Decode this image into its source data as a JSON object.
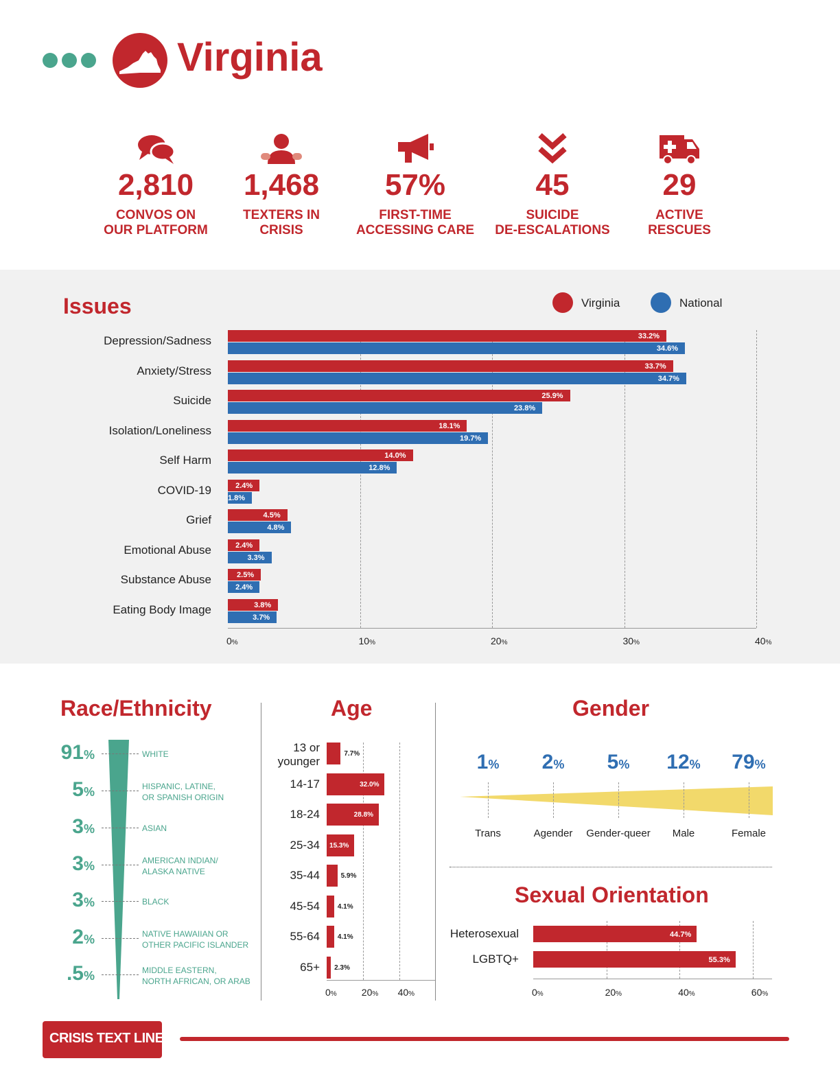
{
  "header": {
    "state": "Virginia"
  },
  "stats": [
    {
      "icon": "chat-bubbles-icon",
      "value": "2,810",
      "label1": "CONVOS ON",
      "label2": "OUR PLATFORM"
    },
    {
      "icon": "person-icon",
      "value": "1,468",
      "label1": "TEXTERS IN",
      "label2": "CRISIS"
    },
    {
      "icon": "megaphone-icon",
      "value": "57%",
      "label1": "FIRST-TIME",
      "label2": "ACCESSING CARE"
    },
    {
      "icon": "chevrons-down-icon",
      "value": "45",
      "label1": "SUICIDE",
      "label2": "DE-ESCALATIONS"
    },
    {
      "icon": "ambulance-icon",
      "value": "29",
      "label1": "ACTIVE",
      "label2": "RESCUES"
    }
  ],
  "colors": {
    "red": "#c1272d",
    "blue": "#2f6eb2",
    "green": "#4aa58d",
    "yellow": "#f2d96b"
  },
  "chart_data": [
    {
      "type": "bar",
      "title": "Issues",
      "orientation": "horizontal",
      "categories": [
        "Depression/Sadness",
        "Anxiety/Stress",
        "Suicide",
        "Isolation/Loneliness",
        "Self Harm",
        "COVID-19",
        "Grief",
        "Emotional Abuse",
        "Substance Abuse",
        "Eating Body Image"
      ],
      "series": [
        {
          "name": "Virginia",
          "color": "#c1272d",
          "values": [
            33.2,
            33.7,
            25.9,
            18.1,
            14.0,
            2.4,
            4.5,
            2.4,
            2.5,
            3.8
          ]
        },
        {
          "name": "National",
          "color": "#2f6eb2",
          "values": [
            34.6,
            34.7,
            23.8,
            19.7,
            12.8,
            1.8,
            4.8,
            3.3,
            2.4,
            3.7
          ]
        }
      ],
      "xlim": [
        0,
        40
      ],
      "xticks": [
        "0%",
        "10%",
        "20%",
        "30%",
        "40%"
      ],
      "legend": "top-right",
      "grid": true
    },
    {
      "type": "bar",
      "title": "Race/Ethnicity",
      "categories": [
        "WHITE",
        "HISPANIC, LATINE, OR SPANISH ORIGIN",
        "ASIAN",
        "AMERICAN INDIAN/ ALASKA NATIVE",
        "BLACK",
        "NATIVE HAWAIIAN OR OTHER PACIFIC ISLANDER",
        "MIDDLE EASTERN, NORTH AFRICAN, OR ARAB"
      ],
      "labels_line1": [
        "WHITE",
        "HISPANIC, LATINE,",
        "ASIAN",
        "AMERICAN INDIAN/",
        "BLACK",
        "NATIVE HAWAIIAN OR",
        "MIDDLE EASTERN,"
      ],
      "labels_line2": [
        "",
        "OR SPANISH ORIGIN",
        "",
        "ALASKA NATIVE",
        "",
        "OTHER PACIFIC ISLANDER",
        "NORTH AFRICAN, OR ARAB"
      ],
      "values": [
        91,
        5,
        3,
        3,
        3,
        2,
        0.5
      ],
      "value_labels": [
        "91",
        "5",
        "3",
        "3",
        "3",
        "2",
        ".5"
      ]
    },
    {
      "type": "bar",
      "title": "Age",
      "orientation": "horizontal",
      "categories": [
        "13 or younger",
        "14-17",
        "18-24",
        "25-34",
        "35-44",
        "45-54",
        "55-64",
        "65+"
      ],
      "labels_line1": [
        "13 or",
        "14-17",
        "18-24",
        "25-34",
        "35-44",
        "45-54",
        "55-64",
        "65+"
      ],
      "labels_line2": [
        "younger",
        "",
        "",
        "",
        "",
        "",
        "",
        ""
      ],
      "values": [
        7.7,
        32.0,
        28.8,
        15.3,
        5.9,
        4.1,
        4.1,
        2.3
      ],
      "value_labels": [
        "7.7%",
        "32.0%",
        "28.8%",
        "15.3%",
        "5.9%",
        "4.1%",
        "4.1%",
        "2.3%"
      ],
      "xlim": [
        0,
        40
      ],
      "xticks": [
        "0%",
        "20%",
        "40%"
      ]
    },
    {
      "type": "area",
      "title": "Gender",
      "categories": [
        "Trans",
        "Agender",
        "Gender-queer",
        "Male",
        "Female"
      ],
      "values": [
        1,
        2,
        5,
        12,
        79
      ]
    },
    {
      "type": "bar",
      "title": "Sexual Orientation",
      "orientation": "horizontal",
      "categories": [
        "Heterosexual",
        "LGBTQ+"
      ],
      "values": [
        44.7,
        55.3
      ],
      "value_labels": [
        "44.7%",
        "55.3%"
      ],
      "xlim": [
        0,
        60
      ],
      "xticks": [
        "0%",
        "20%",
        "40%",
        "60%"
      ]
    }
  ],
  "footer": {
    "brand": "CRISIS TEXT LINE |"
  }
}
